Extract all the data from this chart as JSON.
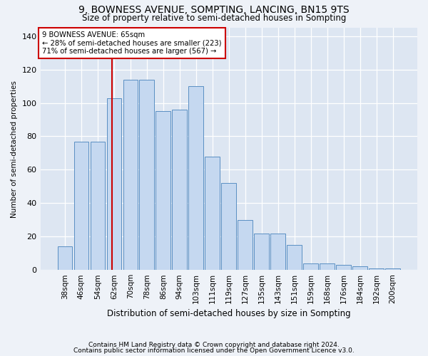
{
  "title": "9, BOWNESS AVENUE, SOMPTING, LANCING, BN15 9TS",
  "subtitle": "Size of property relative to semi-detached houses in Sompting",
  "xlabel": "Distribution of semi-detached houses by size in Sompting",
  "ylabel": "Number of semi-detached properties",
  "categories": [
    "38sqm",
    "46sqm",
    "54sqm",
    "62sqm",
    "70sqm",
    "78sqm",
    "86sqm",
    "94sqm",
    "103sqm",
    "111sqm",
    "119sqm",
    "127sqm",
    "135sqm",
    "143sqm",
    "151sqm",
    "159sqm",
    "168sqm",
    "176sqm",
    "184sqm",
    "192sqm",
    "200sqm"
  ],
  "values": [
    14,
    77,
    77,
    103,
    114,
    114,
    95,
    96,
    110,
    68,
    52,
    30,
    22,
    22,
    15,
    4,
    4,
    3,
    2,
    1,
    1
  ],
  "bar_color": "#c5d8f0",
  "bar_edge_color": "#5a8fc3",
  "line_color": "#cc0000",
  "annotation_title": "9 BOWNESS AVENUE: 65sqm",
  "annotation_line1": "← 28% of semi-detached houses are smaller (223)",
  "annotation_line2": "71% of semi-detached houses are larger (567) →",
  "annotation_box_color": "#cc0000",
  "ylim": [
    0,
    145
  ],
  "yticks": [
    0,
    20,
    40,
    60,
    80,
    100,
    120,
    140
  ],
  "footnote1": "Contains HM Land Registry data © Crown copyright and database right 2024.",
  "footnote2": "Contains public sector information licensed under the Open Government Licence v3.0.",
  "bg_color": "#eef2f8",
  "plot_bg_color": "#dde6f2"
}
